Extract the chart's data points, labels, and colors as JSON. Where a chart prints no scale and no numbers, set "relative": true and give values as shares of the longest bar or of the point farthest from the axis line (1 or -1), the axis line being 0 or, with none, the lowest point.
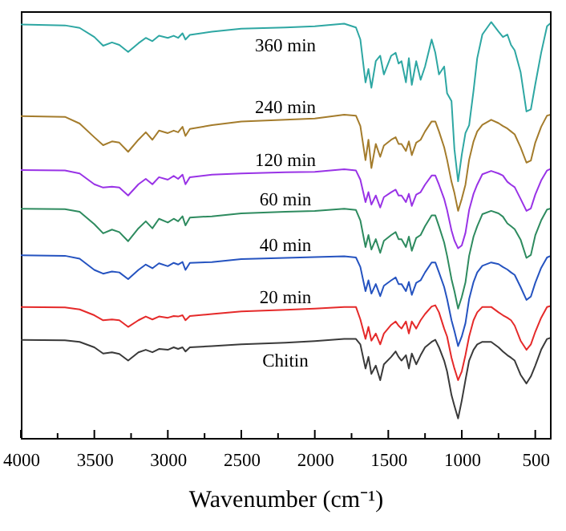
{
  "chart_data": {
    "type": "line",
    "relative": true,
    "xlabel": "Wavenumber (cm⁻¹)",
    "xlim": [
      4000,
      400
    ],
    "xticks": [
      4000,
      {
        "value": 3750,
        "label": null
      },
      3500,
      {
        "value": 3250,
        "label": null
      },
      3000,
      {
        "value": 2750,
        "label": null
      },
      2500,
      {
        "value": 2250,
        "label": null
      },
      2000,
      {
        "value": 1750,
        "label": null
      },
      1500,
      {
        "value": 1250,
        "label": null
      },
      1000,
      {
        "value": 750,
        "label": null
      },
      500
    ],
    "x": [
      4000,
      3700,
      3600,
      3500,
      3440,
      3380,
      3330,
      3270,
      3200,
      3150,
      3105,
      3060,
      3000,
      2960,
      2930,
      2900,
      2880,
      2850,
      2700,
      2500,
      2200,
      2000,
      1800,
      1720,
      1690,
      1655,
      1635,
      1615,
      1585,
      1555,
      1530,
      1480,
      1450,
      1430,
      1410,
      1380,
      1360,
      1340,
      1310,
      1280,
      1250,
      1205,
      1180,
      1155,
      1120,
      1100,
      1070,
      1050,
      1025,
      1000,
      975,
      950,
      920,
      895,
      860,
      800,
      750,
      720,
      690,
      665,
      640,
      600,
      560,
      530,
      500,
      460,
      420,
      400
    ],
    "series": [
      {
        "name": "360 min",
        "color": "#2ea7a3",
        "values": [
          0.994,
          0.992,
          0.986,
          0.964,
          0.943,
          0.951,
          0.945,
          0.928,
          0.949,
          0.962,
          0.954,
          0.967,
          0.962,
          0.967,
          0.962,
          0.973,
          0.958,
          0.969,
          0.977,
          0.984,
          0.987,
          0.99,
          0.996,
          0.987,
          0.958,
          0.855,
          0.887,
          0.842,
          0.906,
          0.919,
          0.874,
          0.919,
          0.926,
          0.9,
          0.906,
          0.855,
          0.913,
          0.849,
          0.906,
          0.861,
          0.893,
          0.958,
          0.926,
          0.874,
          0.893,
          0.829,
          0.81,
          0.694,
          0.617,
          0.681,
          0.733,
          0.752,
          0.835,
          0.913,
          0.97,
          1.0,
          0.977,
          0.964,
          0.97,
          0.945,
          0.932,
          0.88,
          0.785,
          0.79,
          0.85,
          0.926,
          0.99,
          0.996
        ]
      },
      {
        "name": "240 min",
        "color": "#a47c2c",
        "values": [
          0.774,
          0.772,
          0.756,
          0.723,
          0.704,
          0.713,
          0.71,
          0.688,
          0.717,
          0.735,
          0.717,
          0.739,
          0.733,
          0.739,
          0.735,
          0.748,
          0.726,
          0.743,
          0.752,
          0.761,
          0.765,
          0.768,
          0.777,
          0.775,
          0.75,
          0.668,
          0.717,
          0.649,
          0.707,
          0.676,
          0.703,
          0.717,
          0.723,
          0.707,
          0.707,
          0.69,
          0.713,
          0.68,
          0.71,
          0.717,
          0.737,
          0.761,
          0.761,
          0.737,
          0.699,
          0.669,
          0.616,
          0.589,
          0.546,
          0.575,
          0.609,
          0.669,
          0.713,
          0.737,
          0.753,
          0.765,
          0.757,
          0.75,
          0.744,
          0.737,
          0.73,
          0.699,
          0.662,
          0.667,
          0.71,
          0.748,
          0.775,
          0.777
        ]
      },
      {
        "name": "120 min",
        "color": "#9933e6",
        "values": [
          0.644,
          0.643,
          0.636,
          0.61,
          0.602,
          0.604,
          0.602,
          0.583,
          0.61,
          0.623,
          0.61,
          0.627,
          0.621,
          0.63,
          0.623,
          0.633,
          0.61,
          0.627,
          0.633,
          0.636,
          0.639,
          0.64,
          0.646,
          0.643,
          0.621,
          0.567,
          0.591,
          0.561,
          0.583,
          0.554,
          0.579,
          0.591,
          0.597,
          0.583,
          0.583,
          0.567,
          0.587,
          0.558,
          0.585,
          0.591,
          0.609,
          0.631,
          0.631,
          0.609,
          0.575,
          0.548,
          0.499,
          0.475,
          0.456,
          0.463,
          0.493,
          0.548,
          0.587,
          0.609,
          0.634,
          0.642,
          0.636,
          0.631,
          0.616,
          0.609,
          0.603,
          0.575,
          0.546,
          0.552,
          0.585,
          0.619,
          0.643,
          0.646
        ]
      },
      {
        "name": "60 min",
        "color": "#2e8b5f",
        "values": [
          0.551,
          0.55,
          0.544,
          0.514,
          0.492,
          0.501,
          0.495,
          0.473,
          0.504,
          0.521,
          0.504,
          0.527,
          0.518,
          0.527,
          0.521,
          0.533,
          0.511,
          0.53,
          0.533,
          0.54,
          0.544,
          0.546,
          0.551,
          0.548,
          0.523,
          0.459,
          0.488,
          0.453,
          0.478,
          0.445,
          0.474,
          0.488,
          0.495,
          0.478,
          0.478,
          0.459,
          0.484,
          0.45,
          0.481,
          0.488,
          0.509,
          0.535,
          0.535,
          0.509,
          0.47,
          0.438,
          0.382,
          0.353,
          0.311,
          0.339,
          0.374,
          0.438,
          0.484,
          0.509,
          0.538,
          0.546,
          0.54,
          0.532,
          0.516,
          0.509,
          0.502,
          0.477,
          0.433,
          0.44,
          0.487,
          0.523,
          0.549,
          0.551
        ]
      },
      {
        "name": "40 min",
        "color": "#2553c0",
        "values": [
          0.439,
          0.438,
          0.431,
          0.404,
          0.395,
          0.4,
          0.398,
          0.382,
          0.404,
          0.417,
          0.408,
          0.42,
          0.413,
          0.421,
          0.417,
          0.423,
          0.404,
          0.421,
          0.423,
          0.43,
          0.433,
          0.435,
          0.437,
          0.434,
          0.411,
          0.353,
          0.379,
          0.347,
          0.37,
          0.341,
          0.366,
          0.379,
          0.386,
          0.37,
          0.37,
          0.353,
          0.375,
          0.344,
          0.373,
          0.379,
          0.398,
          0.422,
          0.422,
          0.398,
          0.363,
          0.334,
          0.283,
          0.257,
          0.221,
          0.244,
          0.276,
          0.334,
          0.375,
          0.398,
          0.414,
          0.422,
          0.418,
          0.411,
          0.405,
          0.398,
          0.392,
          0.363,
          0.332,
          0.34,
          0.373,
          0.409,
          0.434,
          0.437
        ]
      },
      {
        "name": "20 min",
        "color": "#e52a2a",
        "values": [
          0.315,
          0.314,
          0.309,
          0.295,
          0.283,
          0.285,
          0.283,
          0.267,
          0.283,
          0.292,
          0.285,
          0.292,
          0.289,
          0.293,
          0.292,
          0.295,
          0.283,
          0.293,
          0.298,
          0.304,
          0.308,
          0.311,
          0.315,
          0.315,
          0.285,
          0.238,
          0.267,
          0.234,
          0.251,
          0.225,
          0.251,
          0.272,
          0.28,
          0.27,
          0.263,
          0.28,
          0.251,
          0.28,
          0.263,
          0.283,
          0.298,
          0.316,
          0.319,
          0.302,
          0.263,
          0.244,
          0.193,
          0.167,
          0.139,
          0.16,
          0.199,
          0.244,
          0.283,
          0.302,
          0.315,
          0.315,
          0.302,
          0.295,
          0.289,
          0.283,
          0.27,
          0.234,
          0.212,
          0.225,
          0.255,
          0.289,
          0.315,
          0.317
        ]
      },
      {
        "name": "Chitin",
        "color": "#3a3a3a",
        "values": [
          0.236,
          0.235,
          0.231,
          0.218,
          0.203,
          0.206,
          0.202,
          0.186,
          0.206,
          0.212,
          0.206,
          0.214,
          0.212,
          0.218,
          0.214,
          0.218,
          0.208,
          0.218,
          0.221,
          0.225,
          0.229,
          0.233,
          0.238,
          0.238,
          0.225,
          0.167,
          0.195,
          0.154,
          0.174,
          0.139,
          0.177,
          0.195,
          0.208,
          0.195,
          0.186,
          0.199,
          0.167,
          0.203,
          0.177,
          0.199,
          0.218,
          0.231,
          0.236,
          0.218,
          0.186,
          0.16,
          0.103,
          0.077,
          0.047,
          0.09,
          0.139,
          0.186,
          0.212,
          0.225,
          0.231,
          0.231,
          0.218,
          0.208,
          0.199,
          0.193,
          0.186,
          0.152,
          0.131,
          0.148,
          0.174,
          0.212,
          0.238,
          0.24
        ]
      }
    ]
  }
}
